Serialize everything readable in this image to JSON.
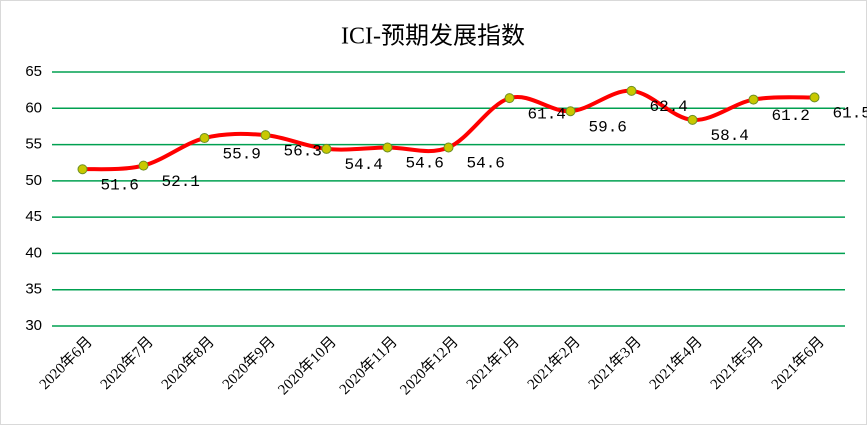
{
  "chart_data": {
    "type": "line",
    "title": "ICI-预期发展指数",
    "categories": [
      "2020年6月",
      "2020年7月",
      "2020年8月",
      "2020年9月",
      "2020年10月",
      "2020年11月",
      "2020年12月",
      "2021年1月",
      "2021年2月",
      "2021年3月",
      "2021年4月",
      "2021年5月",
      "2021年6月"
    ],
    "series": [
      {
        "name": "ICI-预期发展指数",
        "color": "#ff0000",
        "marker_color": "#c8c800",
        "values": [
          51.6,
          52.1,
          55.9,
          56.3,
          54.4,
          54.6,
          54.6,
          61.4,
          59.6,
          62.4,
          58.4,
          61.2,
          61.5
        ]
      }
    ],
    "ylim": [
      30,
      65
    ],
    "yticks": [
      30,
      35,
      40,
      45,
      50,
      55,
      60,
      65
    ],
    "grid": true,
    "grid_color": "#00a050"
  }
}
